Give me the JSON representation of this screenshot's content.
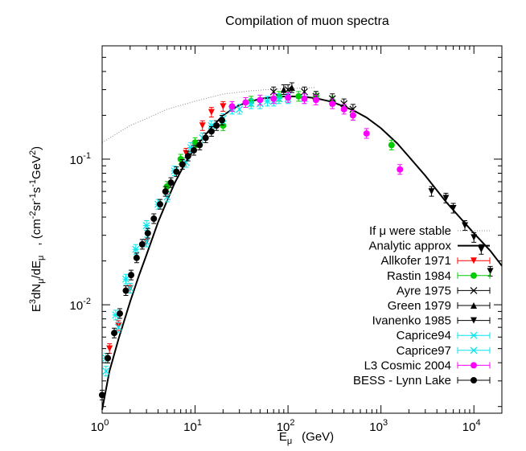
{
  "chart_data": {
    "type": "scatter",
    "title": "Compilation of muon spectra",
    "xlabel": "E",
    "xlabel_sub": "μ",
    "xlabel_unit": "(GeV)",
    "ylabel": "E3dNμ/dEμ , (cm-2sr-1s-1GeV2)",
    "x_scale": "log",
    "y_scale": "log",
    "xlim": [
      1,
      20000
    ],
    "ylim": [
      0.0018,
      0.6
    ],
    "x_ticks": [
      "10^0",
      "10^1",
      "10^2",
      "10^3",
      "10^4"
    ],
    "y_ticks": [
      "10^-2",
      "10^-1"
    ],
    "legend_position": "center-right",
    "series": [
      {
        "name": "If μ were stable",
        "style": "dotted-line",
        "color": "#888888",
        "x": [
          1,
          2,
          3,
          5,
          10,
          20,
          40,
          60,
          100,
          200
        ],
        "y": [
          0.13,
          0.17,
          0.19,
          0.22,
          0.25,
          0.28,
          0.295,
          0.3,
          0.305,
          0.31
        ]
      },
      {
        "name": "Analytic approx",
        "style": "solid-line",
        "color": "#000000",
        "x": [
          1,
          1.2,
          1.5,
          2,
          2.5,
          3,
          4,
          5,
          6,
          8,
          10,
          15,
          20,
          30,
          50,
          80,
          100,
          150,
          200,
          300,
          500,
          700,
          1000,
          1500,
          2000,
          3000,
          5000,
          7000,
          10000,
          15000,
          20000
        ],
        "y": [
          0.0019,
          0.0035,
          0.0058,
          0.0105,
          0.016,
          0.022,
          0.037,
          0.052,
          0.068,
          0.097,
          0.12,
          0.165,
          0.2,
          0.235,
          0.26,
          0.268,
          0.27,
          0.268,
          0.262,
          0.247,
          0.217,
          0.193,
          0.163,
          0.128,
          0.104,
          0.077,
          0.051,
          0.04,
          0.031,
          0.0235,
          0.0185
        ]
      },
      {
        "name": "Allkofer 1971",
        "marker": "triangle-down",
        "color": "#ff0000",
        "x": [
          1.2,
          1.5,
          2,
          3,
          5,
          8,
          12,
          15,
          20
        ],
        "y": [
          0.005,
          0.0072,
          0.013,
          0.027,
          0.062,
          0.11,
          0.17,
          0.21,
          0.23
        ]
      },
      {
        "name": "Rastin 1984",
        "marker": "circle",
        "color": "#00cc00",
        "x": [
          5,
          7,
          10,
          20,
          40,
          80,
          130,
          200,
          300,
          500,
          1300
        ],
        "y": [
          0.065,
          0.1,
          0.13,
          0.17,
          0.25,
          0.27,
          0.27,
          0.27,
          0.25,
          0.2,
          0.125
        ]
      },
      {
        "name": "Ayre 1975",
        "marker": "x",
        "color": "#000000",
        "x": [
          70,
          100,
          150,
          200,
          300,
          400,
          500
        ],
        "y": [
          0.29,
          0.3,
          0.29,
          0.27,
          0.26,
          0.24,
          0.22
        ]
      },
      {
        "name": "Green 1979",
        "marker": "triangle-up",
        "color": "#000000",
        "x": [
          90,
          110
        ],
        "y": [
          0.3,
          0.31
        ]
      },
      {
        "name": "Ivanenko 1985",
        "marker": "triangle-down",
        "color": "#000000",
        "x": [
          3500,
          5000,
          6000,
          8000,
          10000,
          12000,
          15000
        ],
        "y": [
          0.06,
          0.054,
          0.046,
          0.035,
          0.029,
          0.024,
          0.017
        ]
      },
      {
        "name": "Caprice94",
        "marker": "star",
        "color": "#00e5ee",
        "x": [
          1.1,
          1.4,
          1.8,
          2.3,
          3,
          4,
          6,
          9,
          15,
          25,
          40,
          60,
          80
        ],
        "y": [
          0.0043,
          0.0085,
          0.015,
          0.024,
          0.035,
          0.049,
          0.083,
          0.12,
          0.17,
          0.22,
          0.24,
          0.25,
          0.26
        ]
      },
      {
        "name": "Caprice97",
        "marker": "x",
        "color": "#00e5ee",
        "x": [
          1.1,
          1.5,
          2,
          3,
          5,
          8,
          12,
          20,
          30,
          50,
          70,
          100,
          150
        ],
        "y": [
          0.0035,
          0.007,
          0.013,
          0.027,
          0.055,
          0.095,
          0.14,
          0.19,
          0.22,
          0.24,
          0.25,
          0.26,
          0.26
        ]
      },
      {
        "name": "L3 Cosmic 2004",
        "marker": "circle",
        "color": "#ff00ff",
        "x": [
          25,
          35,
          50,
          70,
          100,
          150,
          200,
          300,
          400,
          500,
          700,
          1600
        ],
        "y": [
          0.23,
          0.245,
          0.255,
          0.26,
          0.265,
          0.26,
          0.255,
          0.24,
          0.22,
          0.2,
          0.15,
          0.085
        ]
      },
      {
        "name": "BESS - Lynn Lake",
        "marker": "circle",
        "color": "#000000",
        "x": [
          1,
          1.15,
          1.35,
          1.55,
          1.8,
          2.05,
          2.35,
          2.7,
          3.1,
          3.6,
          4.2,
          4.8,
          5.5,
          6.3,
          7.3,
          8.4,
          9.7,
          11.2,
          13,
          15,
          17,
          19.5
        ],
        "y": [
          0.0024,
          0.0043,
          0.0064,
          0.0087,
          0.0125,
          0.016,
          0.021,
          0.026,
          0.031,
          0.039,
          0.049,
          0.06,
          0.069,
          0.082,
          0.092,
          0.105,
          0.115,
          0.125,
          0.14,
          0.155,
          0.17,
          0.185
        ]
      }
    ]
  }
}
